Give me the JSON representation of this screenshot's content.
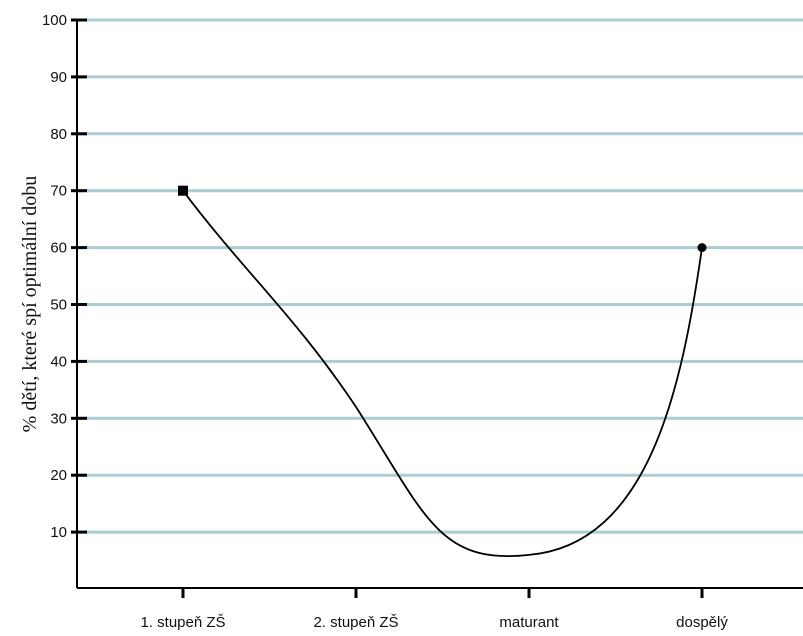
{
  "chart_data": {
    "type": "line",
    "title": "",
    "xlabel": "",
    "ylabel": "% dětí, které spí optimální dobu",
    "categories": [
      "1. stupeň ZŠ",
      "2. stupeň ZŠ",
      "maturant",
      "dospělý"
    ],
    "y_ticks": [
      "10",
      "20",
      "30",
      "40",
      "50",
      "60",
      "70",
      "80",
      "90",
      "100"
    ],
    "ylim": [
      0,
      100
    ],
    "grid": true,
    "grid_color": "#a9cdd0",
    "series": [
      {
        "color": "#000000",
        "points": [
          {
            "x": "1. stupeň ZŠ",
            "y": 70,
            "marker": "square"
          },
          {
            "x": "2. stupeň ZŠ",
            "y": 32
          },
          {
            "x": "maturant",
            "y": 6
          },
          {
            "x": "dospělý",
            "y": 60,
            "marker": "circle"
          }
        ]
      }
    ]
  }
}
